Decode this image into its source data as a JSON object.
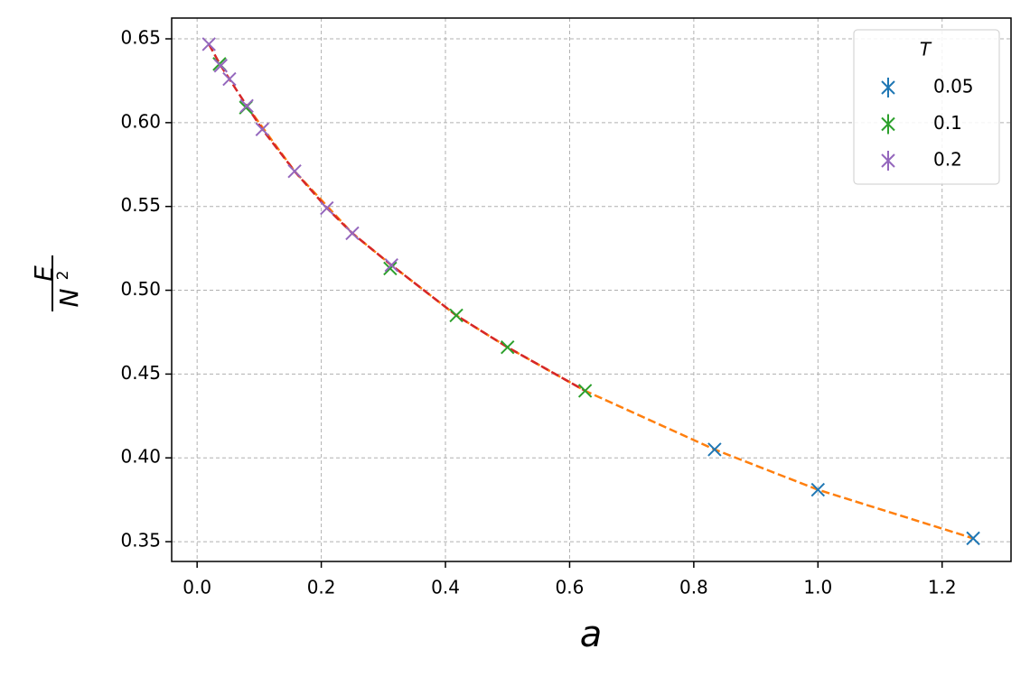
{
  "chart_data": {
    "type": "scatter",
    "xlabel": "a",
    "ylabel": {
      "numerator": "E",
      "denominator": "N",
      "exponent": "2"
    },
    "legend_title": "T",
    "legend": "upper right",
    "grid": true,
    "xlim": [
      -0.041,
      1.311
    ],
    "ylim": [
      0.3382,
      0.6624
    ],
    "xticks": [
      {
        "value": 0,
        "label": "0.0"
      },
      0.2,
      0.4,
      0.6,
      0.8,
      {
        "value": 1,
        "label": "1.0"
      },
      1.2
    ],
    "yticks": [
      0.35,
      {
        "value": 0.4,
        "label": "0.40"
      },
      0.45,
      {
        "value": 0.5,
        "label": "0.50"
      },
      0.55,
      {
        "value": 0.6,
        "label": "0.60"
      },
      0.65
    ],
    "series": [
      {
        "name": "0.05",
        "color": "#1f77b4",
        "x": [
          0.8335,
          1.0,
          1.25
        ],
        "y": [
          0.405,
          0.381,
          0.352
        ]
      },
      {
        "name": "0.1",
        "color": "#2ca02c",
        "x": [
          0.036,
          0.0786,
          0.311,
          0.4175,
          0.5,
          0.625
        ],
        "y": [
          0.635,
          0.609,
          0.513,
          0.485,
          0.466,
          0.44
        ]
      },
      {
        "name": "0.2",
        "color": "#9467bd",
        "x": [
          0.019,
          0.038,
          0.052,
          0.08,
          0.105,
          0.157,
          0.209,
          0.25,
          0.313
        ],
        "y": [
          0.6468,
          0.634,
          0.626,
          0.61,
          0.596,
          0.571,
          0.549,
          0.534,
          0.515
        ]
      }
    ],
    "lines": [
      {
        "color": "#ff7f0e",
        "style": "dashed",
        "x": [
          0.08,
          0.157,
          0.25,
          0.313,
          0.4175,
          0.5,
          0.625,
          0.8335,
          1.0,
          1.25
        ],
        "y": [
          0.61,
          0.571,
          0.534,
          0.515,
          0.485,
          0.466,
          0.44,
          0.405,
          0.381,
          0.352
        ]
      },
      {
        "color": "#d62728",
        "style": "dashed",
        "x": [
          0.019,
          0.038,
          0.052,
          0.08,
          0.105,
          0.157,
          0.209,
          0.25,
          0.313,
          0.4175,
          0.5,
          0.625
        ],
        "y": [
          0.6468,
          0.634,
          0.626,
          0.61,
          0.596,
          0.571,
          0.549,
          0.534,
          0.515,
          0.485,
          0.466,
          0.44
        ]
      }
    ]
  }
}
